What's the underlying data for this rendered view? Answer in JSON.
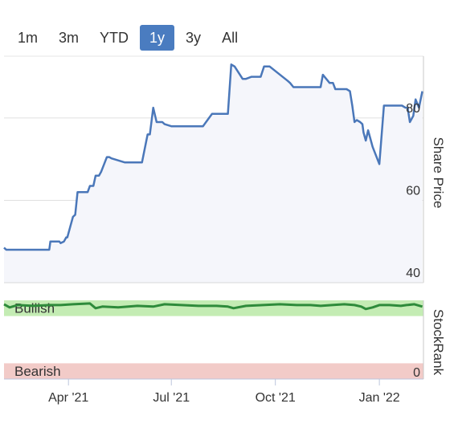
{
  "range_selector": {
    "buttons": [
      "1m",
      "3m",
      "YTD",
      "1y",
      "3y",
      "All"
    ],
    "active": "1y",
    "active_color": "#4a7cc0"
  },
  "chart_data": [
    {
      "type": "line",
      "ylabel": "Share Price",
      "ylim": [
        40,
        95
      ],
      "yticks": [
        40,
        60,
        80
      ],
      "xlim": [
        "2021-02-03",
        "2022-02-09"
      ],
      "xticks": [
        {
          "date": "2021-04-01",
          "label": "Apr '21"
        },
        {
          "date": "2021-07-01",
          "label": "Jul '21"
        },
        {
          "date": "2021-10-01",
          "label": "Oct '21"
        },
        {
          "date": "2022-01-01",
          "label": "Jan '22"
        }
      ],
      "grid": true,
      "line_color": "#4a77b9",
      "area_color": "#f5f6fb",
      "series": [
        {
          "x": [
            "2021-02-03",
            "2021-02-05",
            "2021-03-15",
            "2021-03-16",
            "2021-03-24",
            "2021-03-25",
            "2021-03-28",
            "2021-03-30",
            "2021-03-31",
            "2021-04-03",
            "2021-04-05",
            "2021-04-07",
            "2021-04-09",
            "2021-04-18",
            "2021-04-20",
            "2021-04-23",
            "2021-04-25",
            "2021-04-28",
            "2021-04-30",
            "2021-05-05",
            "2021-05-07",
            "2021-05-09",
            "2021-05-21",
            "2021-05-23",
            "2021-05-25",
            "2021-06-03",
            "2021-06-05",
            "2021-06-10",
            "2021-06-12",
            "2021-06-15",
            "2021-06-18",
            "2021-06-23",
            "2021-06-25",
            "2021-07-01",
            "2021-07-10",
            "2021-07-18",
            "2021-07-23",
            "2021-07-26",
            "2021-07-29",
            "2021-08-06",
            "2021-08-08",
            "2021-08-10",
            "2021-08-13",
            "2021-08-20",
            "2021-08-23",
            "2021-08-26",
            "2021-09-02",
            "2021-09-05",
            "2021-09-10",
            "2021-09-18",
            "2021-09-21",
            "2021-09-24",
            "2021-09-26",
            "2021-10-12",
            "2021-10-14",
            "2021-10-17",
            "2021-10-19",
            "2021-10-21",
            "2021-11-05",
            "2021-11-08",
            "2021-11-10",
            "2021-11-12",
            "2021-11-15",
            "2021-11-18",
            "2021-11-21",
            "2021-11-23",
            "2021-11-25",
            "2021-11-28",
            "2021-12-01",
            "2021-12-03",
            "2021-12-06",
            "2021-12-08",
            "2021-12-10",
            "2021-12-12",
            "2021-12-15",
            "2021-12-17",
            "2021-12-18",
            "2021-12-20",
            "2021-12-22",
            "2021-12-24",
            "2021-12-26",
            "2022-01-01",
            "2022-01-05",
            "2022-01-15",
            "2022-01-19",
            "2022-01-21",
            "2022-01-24",
            "2022-01-26",
            "2022-01-28",
            "2022-01-31",
            "2022-02-02",
            "2022-02-05",
            "2022-02-08"
          ],
          "y": [
            48.5,
            48,
            48,
            50,
            50,
            49.6,
            50,
            51,
            51,
            54,
            56,
            56.5,
            62,
            62,
            63.5,
            63.5,
            66,
            66,
            67,
            70.5,
            70.5,
            70.2,
            69.2,
            69.2,
            69.2,
            69.2,
            69.2,
            76,
            76,
            82.5,
            79,
            79,
            78.5,
            78,
            78,
            78,
            78,
            78,
            78,
            81,
            81,
            81,
            81,
            81,
            93,
            92.5,
            89.5,
            89.5,
            90,
            90,
            92.5,
            92.5,
            92.5,
            89,
            88.5,
            87.5,
            87.5,
            87.5,
            87.5,
            87.5,
            87.5,
            90.5,
            89.5,
            88.5,
            88.5,
            87,
            87,
            87,
            87,
            87,
            86.5,
            83,
            79,
            79.5,
            79,
            78.5,
            76.5,
            74.5,
            77,
            75,
            73,
            68.8,
            83,
            83,
            83,
            83,
            82.5,
            82.5,
            79,
            80.5,
            84.5,
            82.5,
            86.5
          ]
        }
      ]
    },
    {
      "type": "line",
      "ylabel": "StockRank",
      "yticks": [
        0
      ],
      "ylim": [
        0,
        100
      ],
      "bands": [
        {
          "label": "Bullish",
          "range": [
            80,
            100
          ],
          "fill": "#c4ecb4",
          "text_color": "#2f7a2a"
        },
        {
          "label": "Bearish",
          "range": [
            0,
            20
          ],
          "fill": "#f2cbc8",
          "text_color": "#c0414b"
        }
      ],
      "line_color": "#2e8b3b",
      "series": [
        {
          "x": [
            "2021-02-03",
            "2021-02-08",
            "2021-02-15",
            "2021-03-01",
            "2021-03-15",
            "2021-03-25",
            "2021-04-05",
            "2021-04-20",
            "2021-04-25",
            "2021-05-01",
            "2021-05-15",
            "2021-06-01",
            "2021-06-15",
            "2021-06-25",
            "2021-07-10",
            "2021-07-25",
            "2021-08-10",
            "2021-08-20",
            "2021-08-25",
            "2021-09-05",
            "2021-09-20",
            "2021-10-05",
            "2021-10-20",
            "2021-11-01",
            "2021-11-10",
            "2021-11-20",
            "2021-12-01",
            "2021-12-10",
            "2021-12-16",
            "2021-12-20",
            "2021-12-26",
            "2022-01-01",
            "2022-01-10",
            "2022-01-20",
            "2022-01-25",
            "2022-02-01",
            "2022-02-08"
          ],
          "y": [
            95,
            91,
            94,
            93,
            94,
            94,
            95,
            96,
            90,
            92,
            91,
            93,
            92,
            95,
            94,
            93,
            93,
            92,
            90,
            93,
            94,
            95,
            94,
            94,
            93,
            94,
            95,
            94,
            92,
            89,
            91,
            94,
            94,
            93,
            94,
            95,
            92
          ]
        }
      ]
    }
  ]
}
